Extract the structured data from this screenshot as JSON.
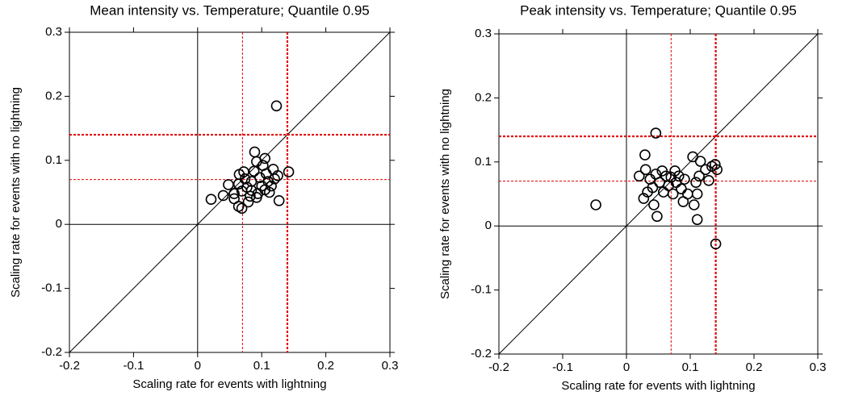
{
  "chart_data": [
    {
      "type": "scatter",
      "title": "Mean intensity vs. Temperature; Quantile 0.95",
      "x_label": "Scaling rate for events with lightning",
      "y_label": "Scaling rate for events with no lightning",
      "xlim": [
        -0.2,
        0.3
      ],
      "ylim": [
        -0.2,
        0.3
      ],
      "xticks": [
        -0.2,
        -0.1,
        0,
        0.1,
        0.2,
        0.3
      ],
      "yticks": [
        -0.2,
        -0.1,
        0,
        0.1,
        0.2,
        0.3
      ],
      "ref_lines": [
        0.07,
        0.14
      ],
      "ref_color": "#e00000",
      "color": "#000000",
      "x": [
        0.123,
        0.142,
        0.127,
        0.021,
        0.04,
        0.048,
        0.057,
        0.064,
        0.065,
        0.069,
        0.064,
        0.072,
        0.077,
        0.079,
        0.084,
        0.088,
        0.089,
        0.092,
        0.094,
        0.097,
        0.1,
        0.102,
        0.105,
        0.107,
        0.11,
        0.112,
        0.118,
        0.12,
        0.125,
        0.069,
        0.082,
        0.092,
        0.074,
        0.105,
        0.057,
        0.115,
        0.084
      ],
      "y": [
        0.185,
        0.082,
        0.037,
        0.039,
        0.045,
        0.062,
        0.04,
        0.063,
        0.078,
        0.052,
        0.028,
        0.082,
        0.058,
        0.035,
        0.067,
        0.083,
        0.113,
        0.098,
        0.048,
        0.073,
        0.06,
        0.092,
        0.054,
        0.079,
        0.067,
        0.05,
        0.086,
        0.071,
        0.076,
        0.025,
        0.044,
        0.042,
        0.071,
        0.103,
        0.048,
        0.06,
        0.053
      ]
    },
    {
      "type": "scatter",
      "title": "Peak intensity vs. Temperature; Quantile 0.95",
      "x_label": "Scaling rate for events with lightning",
      "y_label": "Scaling rate for events with no lightning",
      "xlim": [
        -0.2,
        0.3
      ],
      "ylim": [
        -0.2,
        0.3
      ],
      "xticks": [
        -0.2,
        -0.1,
        0,
        0.1,
        0.2,
        0.3
      ],
      "yticks": [
        -0.2,
        -0.1,
        0,
        0.1,
        0.2,
        0.3
      ],
      "ref_lines": [
        0.07,
        0.14
      ],
      "ref_color": "#e00000",
      "color": "#000000",
      "x": [
        0.046,
        -0.048,
        0.14,
        0.029,
        0.02,
        0.027,
        0.03,
        0.037,
        0.041,
        0.043,
        0.046,
        0.048,
        0.052,
        0.056,
        0.058,
        0.062,
        0.066,
        0.07,
        0.073,
        0.076,
        0.078,
        0.082,
        0.086,
        0.091,
        0.096,
        0.104,
        0.106,
        0.111,
        0.111,
        0.114,
        0.116,
        0.124,
        0.129,
        0.134,
        0.139,
        0.142,
        0.089,
        0.109,
        0.033
      ],
      "y": [
        0.145,
        0.033,
        -0.028,
        0.111,
        0.078,
        0.043,
        0.088,
        0.073,
        0.06,
        0.033,
        0.081,
        0.015,
        0.068,
        0.086,
        0.053,
        0.078,
        0.063,
        0.076,
        0.05,
        0.086,
        0.068,
        0.078,
        0.058,
        0.073,
        0.05,
        0.108,
        0.033,
        0.01,
        0.05,
        0.078,
        0.101,
        0.088,
        0.071,
        0.093,
        0.096,
        0.088,
        0.038,
        0.068,
        0.053
      ]
    }
  ]
}
